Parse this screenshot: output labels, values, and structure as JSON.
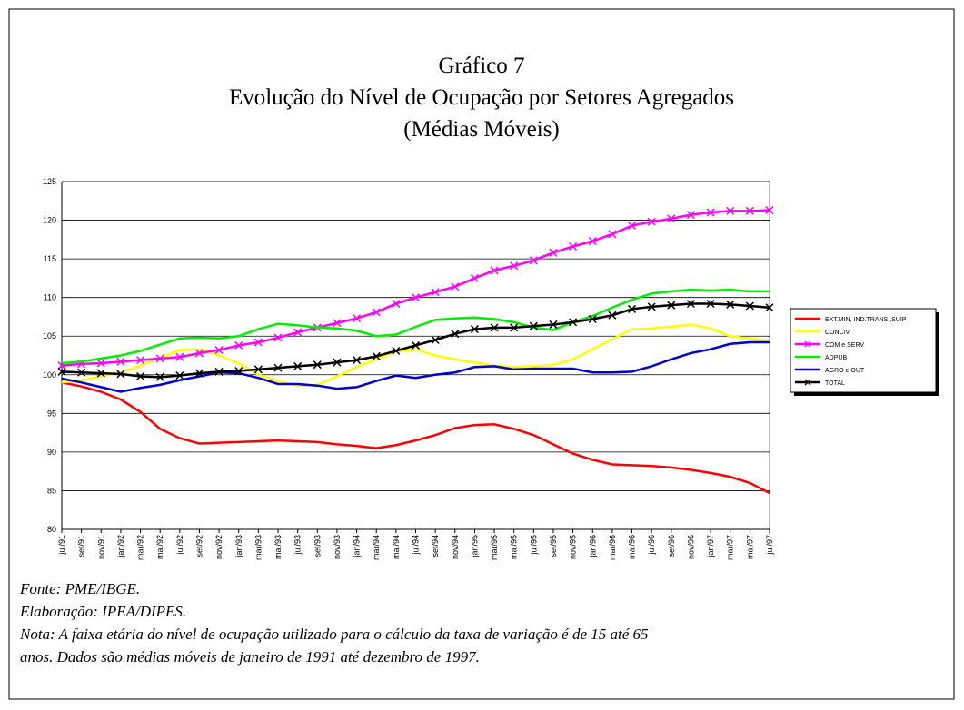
{
  "chart_data": {
    "type": "line",
    "title": "Gráfico 7",
    "subtitle": "Evolução do Nível de Ocupação por Setores Agregados",
    "subtitle2": "(Médias Móveis)",
    "categories": [
      "jul/91",
      "set/91",
      "nov/91",
      "jan/92",
      "mar/92",
      "mai/92",
      "jul/92",
      "set/92",
      "nov/92",
      "jan/93",
      "mar/93",
      "mai/93",
      "jul/93",
      "set/93",
      "nov/93",
      "jan/94",
      "mar/94",
      "mai/94",
      "jul/94",
      "set/94",
      "nov/94",
      "jan/95",
      "mar/95",
      "mai/95",
      "jul/95",
      "set/95",
      "nov/95",
      "jan/96",
      "mar/96",
      "mai/96",
      "jul/96",
      "set/96",
      "nov/96",
      "jan/97",
      "mar/97",
      "mai/97",
      "jul/97"
    ],
    "series": [
      {
        "name": "EXT.MIN, IND.TRANS.,SUIP",
        "color": "#ff0000",
        "marker": "none",
        "values": [
          99,
          98.5,
          97.8,
          96.8,
          95.2,
          93,
          91.8,
          91.1,
          91.2,
          91.3,
          91.4,
          91.5,
          91.4,
          91.3,
          91,
          90.8,
          90.5,
          90.9,
          91.5,
          92.2,
          93.1,
          93.5,
          93.6,
          93,
          92.2,
          91,
          89.8,
          89,
          88.4,
          88.3,
          88.2,
          88,
          87.7,
          87.3,
          86.8,
          86,
          84.7
        ]
      },
      {
        "name": "CONCIV",
        "color": "#ffff00",
        "marker": "none",
        "values": [
          99,
          99.3,
          99.8,
          100.3,
          101.2,
          102.2,
          103.2,
          103.3,
          102.5,
          101.5,
          100,
          99.2,
          98.6,
          98.7,
          99.8,
          101,
          102,
          103,
          103.3,
          102.5,
          102,
          101.6,
          101.2,
          101,
          101.1,
          101.3,
          102,
          103.3,
          104.6,
          105.9,
          106,
          106.2,
          106.5,
          106,
          105,
          104.7,
          104.4
        ]
      },
      {
        "name": "COM e SERV",
        "color": "#ff00ff",
        "marker": "x",
        "values": [
          101.2,
          101.4,
          101.5,
          101.7,
          101.9,
          102.1,
          102.3,
          102.8,
          103.2,
          103.8,
          104.2,
          104.8,
          105.5,
          106.1,
          106.7,
          107.3,
          108.1,
          109.2,
          110,
          110.7,
          111.4,
          112.5,
          113.5,
          114.1,
          114.8,
          115.8,
          116.6,
          117.3,
          118.2,
          119.3,
          119.8,
          120.2,
          120.7,
          121,
          121.2,
          121.2,
          121.3
        ]
      },
      {
        "name": "ADPUB",
        "color": "#00ee00",
        "marker": "none",
        "values": [
          101.5,
          101.7,
          102.1,
          102.5,
          103.1,
          103.9,
          104.7,
          104.8,
          104.7,
          105,
          105.9,
          106.6,
          106.4,
          106.1,
          106,
          105.7,
          105,
          105.2,
          106.2,
          107.1,
          107.3,
          107.4,
          107.2,
          106.8,
          106.1,
          105.8,
          106.8,
          107.6,
          108.7,
          109.7,
          110.5,
          110.8,
          111,
          110.9,
          111,
          110.8,
          110.8
        ]
      },
      {
        "name": "AGRO e OUT",
        "color": "#0000cc",
        "marker": "none",
        "values": [
          99.5,
          99,
          98.4,
          97.8,
          98.3,
          98.7,
          99.3,
          99.8,
          100.3,
          100.2,
          99.6,
          98.8,
          98.8,
          98.6,
          98.2,
          98.4,
          99.2,
          99.9,
          99.6,
          100,
          100.3,
          101,
          101.1,
          100.7,
          100.8,
          100.8,
          100.8,
          100.3,
          100.3,
          100.4,
          101.1,
          102,
          102.8,
          103.3,
          104,
          104.2,
          104.2
        ]
      },
      {
        "name": "TOTAL",
        "color": "#000000",
        "marker": "x",
        "values": [
          100.4,
          100.3,
          100.2,
          100.1,
          99.8,
          99.7,
          99.9,
          100.2,
          100.4,
          100.5,
          100.7,
          100.9,
          101.1,
          101.3,
          101.6,
          101.9,
          102.4,
          103.1,
          103.8,
          104.5,
          105.3,
          105.9,
          106.1,
          106.1,
          106.3,
          106.5,
          106.8,
          107.2,
          107.7,
          108.5,
          108.8,
          109,
          109.2,
          109.2,
          109.1,
          108.9,
          108.7
        ]
      }
    ],
    "ylim": [
      80,
      125
    ],
    "yticks": [
      80,
      85,
      90,
      95,
      100,
      105,
      110,
      115,
      120,
      125
    ],
    "grid": true,
    "legend": "right",
    "notes": [
      "Fonte: PME/IBGE.",
      "Elaboração: IPEA/DIPES.",
      "Nota: A faixa etária do nível de ocupação utilizado para o cálculo da taxa de variação é de 15 até 65",
      "anos. Dados são médias móveis de janeiro de 1991 até dezembro de 1997."
    ]
  }
}
